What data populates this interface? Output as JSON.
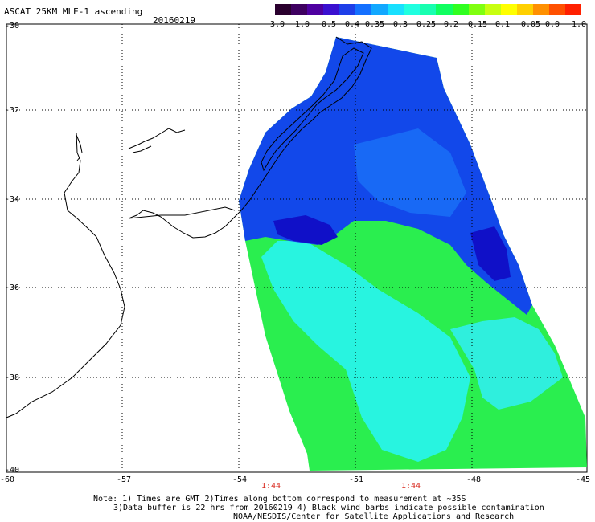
{
  "header": {
    "title": "ASCAT 25KM MLE-1 ascending",
    "date": "20160219"
  },
  "colorbar": {
    "ticks": [
      "-3.0",
      "-1.0",
      "-0.5",
      "-0.4",
      "-0.35",
      "-0.3",
      "-0.25",
      "-0.2",
      "-0.15",
      "-0.1",
      "-0.05",
      "0.0",
      "1.0"
    ],
    "colors": [
      "#2a002e",
      "#3e0060",
      "#4e00a0",
      "#3a10d0",
      "#1e3ee8",
      "#1470ff",
      "#12a8ff",
      "#18e0ff",
      "#20ffe0",
      "#18ffb0",
      "#10ff60",
      "#30ff20",
      "#80ff10",
      "#c8ff10",
      "#ffff00",
      "#ffd000",
      "#ff9000",
      "#ff5000",
      "#ff2000"
    ]
  },
  "map": {
    "lat_labels": [
      "-30",
      "-32",
      "-34",
      "-36",
      "-38",
      "-40"
    ],
    "lon_labels": [
      "-60",
      "-57",
      "-54",
      "-51",
      "-48",
      "-45"
    ],
    "time_labels": [
      "1:44",
      "1:44"
    ]
  },
  "notes": [
    "Note: 1) Times are GMT 2)Times along bottom correspond to measurement at ~35S",
    "3)Data buffer is 22 hrs from 20160219 4) Black wind barbs indicate possible contamination",
    "NOAA/NESDIS/Center for Satellite Applications and Research"
  ]
}
